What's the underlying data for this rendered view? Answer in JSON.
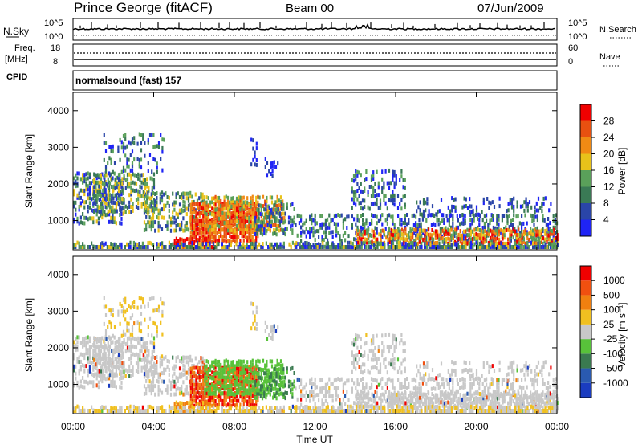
{
  "header": {
    "station": "Prince George (fitACF)",
    "beam": "Beam 00",
    "date": "07/Jun/2009"
  },
  "summary_panel": {
    "left_label": "N.Sky",
    "right_label": "N.Search",
    "left_ticks": [
      "10^5",
      "10^0"
    ],
    "right_ticks": [
      "10^5",
      "10^0"
    ]
  },
  "freq_panel": {
    "left_label_1": "Freq.",
    "left_label_2": "[MHz]",
    "cpid_label": "CPID",
    "right_label": "Nave",
    "left_ticks": [
      "18",
      "8"
    ],
    "right_ticks": [
      "60",
      "0"
    ]
  },
  "cpid_text": "normalsound (fast) 157",
  "colors": {
    "power": [
      "#1f24f5",
      "#2a45a8",
      "#3a7a55",
      "#5aa05a",
      "#e8c21a",
      "#f08a14",
      "#e85010",
      "#f00000"
    ],
    "velocity": [
      "#1a3cc0",
      "#2a5ab0",
      "#3a7a50",
      "#58c23a",
      "#c8c8c8",
      "#f0c020",
      "#f08010",
      "#f05010",
      "#f00000"
    ]
  },
  "chart_data": [
    {
      "type": "heatmap",
      "title": "",
      "xlabel": "",
      "ylabel": "Slant Range [km]",
      "x_ticks": [
        "00:00",
        "04:00",
        "08:00",
        "12:00",
        "16:00",
        "20:00",
        "00:00"
      ],
      "y_ticks": [
        "1000",
        "2000",
        "3000",
        "4000"
      ],
      "ylim": [
        200,
        4500
      ],
      "colorbar": {
        "label": "Power [dB]",
        "ticks": [
          "4",
          "8",
          "12",
          "16",
          "20",
          "24",
          "28"
        ]
      }
    },
    {
      "type": "heatmap",
      "title": "",
      "xlabel": "Time UT",
      "ylabel": "Slant Range [km]",
      "x_ticks": [
        "00:00",
        "04:00",
        "08:00",
        "12:00",
        "16:00",
        "20:00",
        "00:00"
      ],
      "y_ticks": [
        "1000",
        "2000",
        "3000",
        "4000"
      ],
      "ylim": [
        200,
        4500
      ],
      "colorbar": {
        "label": "Velocity [m s⁻¹]",
        "ticks": [
          "1000",
          "500",
          "100",
          "25",
          "-25",
          "-100",
          "-500",
          "-1000"
        ]
      }
    }
  ]
}
